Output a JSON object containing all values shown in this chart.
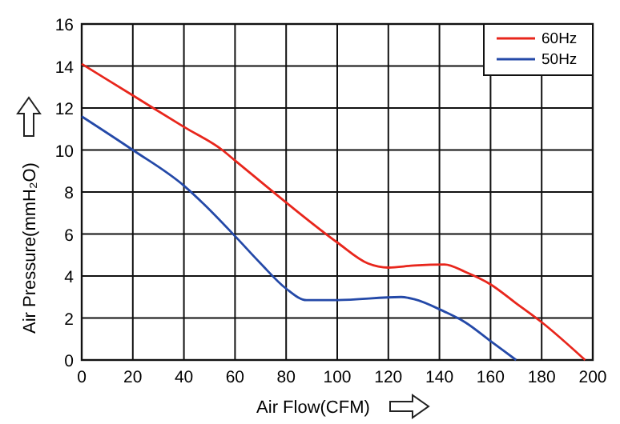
{
  "chart_data": {
    "type": "line",
    "xlabel": "Air Flow(CFM)",
    "ylabel": "Air Pressure(mmH₂O)",
    "xlim": [
      0,
      200
    ],
    "xticks": [
      0,
      20,
      40,
      60,
      80,
      100,
      120,
      140,
      160,
      180,
      200
    ],
    "ylim": [
      0,
      16
    ],
    "yticks": [
      0,
      2,
      4,
      6,
      8,
      10,
      12,
      14,
      16
    ],
    "grid": true,
    "legend": "top right",
    "line_style": "solid",
    "series": [
      {
        "name": "60Hz",
        "color": "#e8261c",
        "x": [
          0,
          20,
          40,
          55,
          60,
          80,
          100,
          112,
          120,
          130,
          142,
          150,
          160,
          170,
          180,
          197
        ],
        "values": [
          14.1,
          12.6,
          11.1,
          10,
          9.5,
          7.5,
          5.6,
          4.6,
          4.4,
          4.5,
          4.55,
          4.2,
          3.6,
          2.7,
          1.8,
          0
        ]
      },
      {
        "name": "50Hz",
        "color": "#2449a8",
        "x": [
          0,
          20,
          40,
          48,
          60,
          70,
          80,
          88,
          100,
          125,
          130,
          142,
          150,
          160,
          170
        ],
        "values": [
          11.6,
          10,
          8.3,
          7.4,
          5.9,
          4.6,
          3.4,
          2.85,
          2.85,
          3.0,
          2.9,
          2.3,
          1.8,
          0.9,
          0
        ]
      }
    ]
  }
}
